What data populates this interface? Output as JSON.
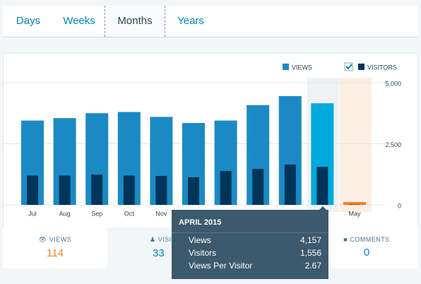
{
  "tabs": [
    "Days",
    "Weeks",
    "Months",
    "Years"
  ],
  "chart_data": {
    "type": "bar",
    "categories": [
      "Jul",
      "Aug",
      "Sep",
      "Oct",
      "Nov",
      null,
      null,
      null,
      null,
      null,
      "May"
    ],
    "series": [
      {
        "name": "VIEWS",
        "color": "#1b8ac4",
        "colors": [
          "#1b8ac4",
          "#1b8ac4",
          "#1b8ac4",
          "#1b8ac4",
          "#1b8ac4",
          "#1b8ac4",
          "#1b8ac4",
          "#1b8ac4",
          "#1b8ac4",
          "#00aadc",
          "#f0821e"
        ],
        "values": [
          3450,
          3550,
          3750,
          3800,
          3600,
          3350,
          3450,
          4080,
          4450,
          4157,
          114
        ]
      },
      {
        "name": "VISITORS",
        "color": "#00355a",
        "colors": [
          "#00355a",
          "#00355a",
          "#00355a",
          "#00355a",
          "#00355a",
          "#00355a",
          "#00355a",
          "#00355a",
          "#00355a",
          "#00355a",
          "#c5501a"
        ],
        "values": [
          1200,
          1200,
          1240,
          1200,
          1185,
          1130,
          1390,
          1470,
          1650,
          1556,
          33
        ]
      }
    ],
    "ylim": [
      0,
      5000
    ],
    "yticks": [
      0,
      {
        "value": 2500,
        "label": "2,500"
      },
      {
        "value": 5000,
        "label": "5,000"
      }
    ],
    "grid": true
  },
  "summary": [
    {
      "label": "VIEWS",
      "value": 114
    },
    {
      "label": "VISITORS",
      "value": 33
    },
    {
      "label": "COMMENTS",
      "value": 0
    }
  ],
  "tooltip": {
    "title": "APRIL 2015",
    "rows": [
      [
        "Views",
        "4,157"
      ],
      [
        "Visitors",
        "1,556"
      ],
      [
        "Views Per Visitor",
        "2.67"
      ]
    ]
  }
}
